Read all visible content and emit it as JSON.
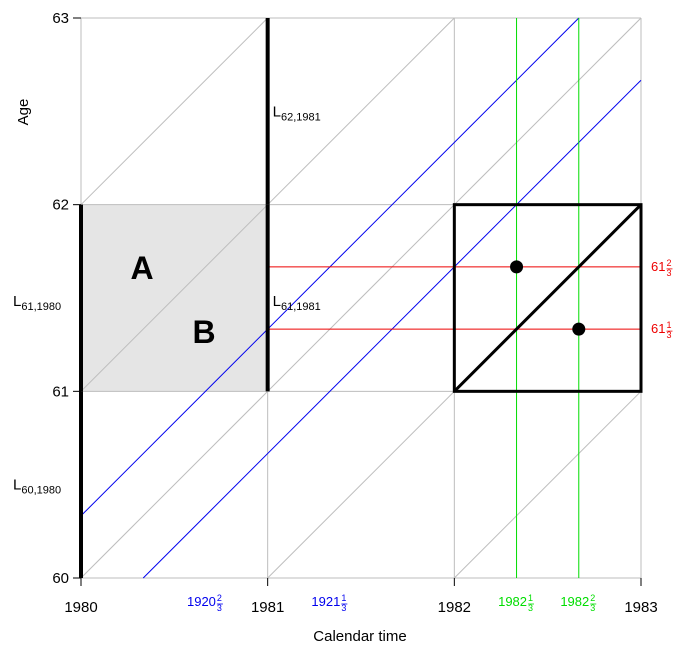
{
  "x_axis": {
    "title": "Calendar time",
    "ticks": [
      {
        "value": 1980,
        "label": "1980"
      },
      {
        "value": 1981,
        "label": "1981"
      },
      {
        "value": 1982,
        "label": "1982"
      },
      {
        "value": 1983,
        "label": "1983"
      }
    ]
  },
  "y_axis": {
    "title": "Age",
    "ticks": [
      {
        "value": 60,
        "label": "60"
      },
      {
        "value": 61,
        "label": "61"
      },
      {
        "value": 62,
        "label": "62"
      },
      {
        "value": 63,
        "label": "63"
      }
    ]
  },
  "regions": {
    "A": {
      "label": "A"
    },
    "B": {
      "label": "B"
    }
  },
  "lifeline_labels": [
    {
      "id": "l62-1981",
      "main": "L",
      "sub": "62,1981",
      "x": 1981,
      "y": 62.5
    },
    {
      "id": "l61-1981",
      "main": "L",
      "sub": "61,1981",
      "x": 1981,
      "y": 61.5
    },
    {
      "id": "l61-1980",
      "main": "L",
      "sub": "61,1980",
      "x": 1980,
      "y": 61.5
    },
    {
      "id": "l60-1980",
      "main": "L",
      "sub": "60,1980",
      "x": 1980,
      "y": 60.5
    }
  ],
  "annotations": {
    "cohort_x": [
      {
        "id": "cohort-1920",
        "whole": "1920",
        "num": "2",
        "den": "3",
        "value": 1920.6667,
        "color": "#0000ee"
      },
      {
        "id": "cohort-1921",
        "whole": "1921",
        "num": "1",
        "den": "3",
        "value": 1921.3333,
        "color": "#0000ee"
      }
    ],
    "time_x": [
      {
        "id": "time-1982-1",
        "whole": "1982",
        "num": "1",
        "den": "3",
        "value": 1982.3333,
        "color": "#00dd00"
      },
      {
        "id": "time-1982-2",
        "whole": "1982",
        "num": "2",
        "den": "3",
        "value": 1982.6667,
        "color": "#00dd00"
      }
    ],
    "age_y": [
      {
        "id": "age-61-2",
        "whole": "61",
        "num": "2",
        "den": "3",
        "value": 61.6667,
        "color": "#ee0000"
      },
      {
        "id": "age-61-1",
        "whole": "61",
        "num": "1",
        "den": "3",
        "value": 61.3333,
        "color": "#ee0000"
      }
    ]
  },
  "points": [
    {
      "x": 1982.3333,
      "y": 61.6667
    },
    {
      "x": 1982.6667,
      "y": 61.3333
    }
  ],
  "colors": {
    "grid": "#bdbdbd",
    "shade": "#e5e5e5",
    "cohort_line": "#0000ee",
    "time_line": "#00dd00",
    "age_line": "#ee0000"
  }
}
